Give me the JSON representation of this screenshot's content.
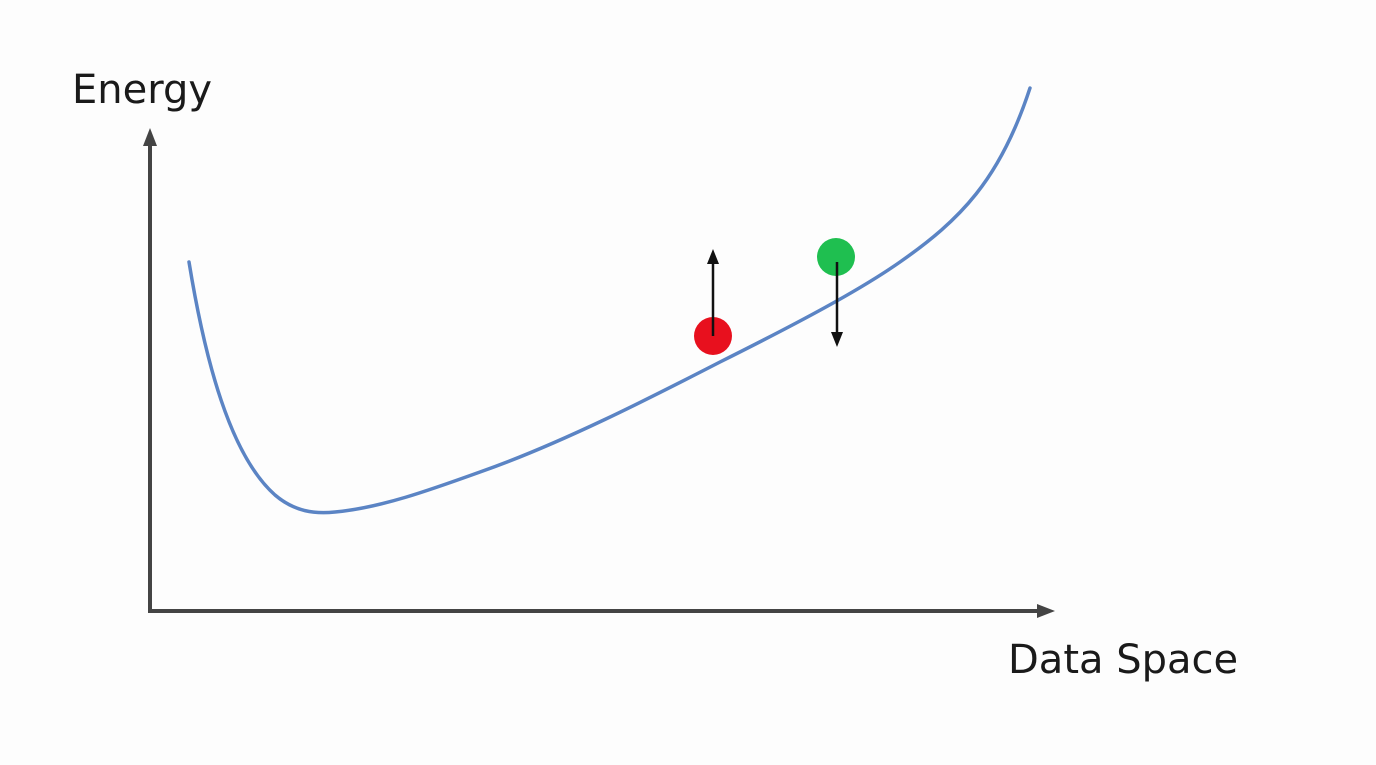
{
  "diagram": {
    "y_axis_label": "Energy",
    "x_axis_label": "Data Space",
    "curve": {
      "description": "energy function over data space",
      "color": "#5b84c4"
    },
    "points": [
      {
        "name": "red-point",
        "color": "#e8101e",
        "arrow": "up"
      },
      {
        "name": "green-point",
        "color": "#1fbf50",
        "arrow": "down"
      }
    ],
    "axis_color": "#444444",
    "arrow_color": "#111111"
  }
}
